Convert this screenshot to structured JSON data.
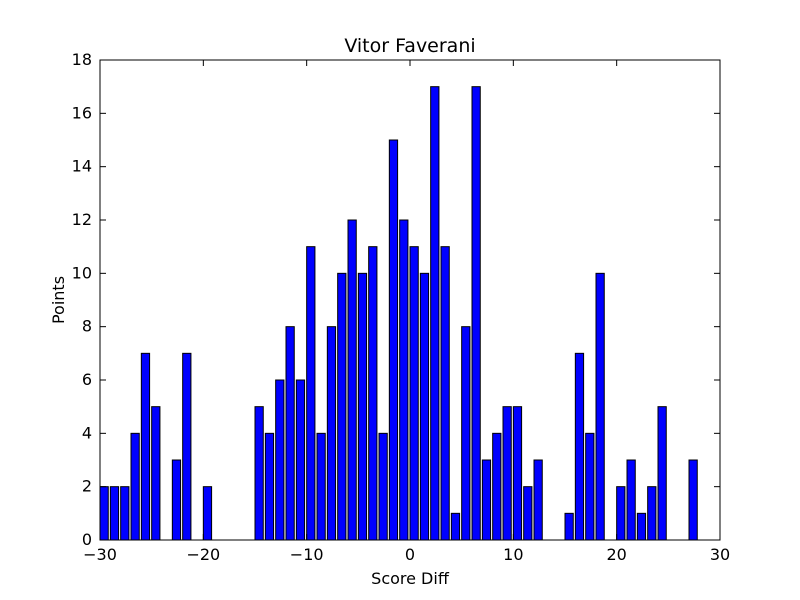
{
  "chart_data": {
    "type": "bar",
    "title": "Vitor Faverani",
    "xlabel": "Score Diff",
    "ylabel": "Points",
    "xlim": [
      -30,
      30
    ],
    "ylim": [
      0,
      18
    ],
    "xticks": [
      -30,
      -20,
      -10,
      0,
      10,
      20,
      30
    ],
    "yticks": [
      0,
      2,
      4,
      6,
      8,
      10,
      12,
      14,
      16,
      18
    ],
    "bar_color": "#0000ff",
    "grid": false,
    "x": [
      -30,
      -29,
      -28,
      -27,
      -26,
      -25,
      -23,
      -22,
      -20,
      -15,
      -14,
      -13,
      -12,
      -11,
      -10,
      -9,
      -8,
      -7,
      -6,
      -5,
      -4,
      -3,
      -2,
      -1,
      0,
      1,
      2,
      3,
      4,
      5,
      6,
      7,
      8,
      9,
      10,
      11,
      12,
      15,
      16,
      17,
      18,
      20,
      21,
      22,
      23,
      24,
      27
    ],
    "values": [
      2,
      2,
      2,
      4,
      7,
      5,
      3,
      7,
      2,
      5,
      4,
      6,
      8,
      6,
      11,
      4,
      8,
      10,
      12,
      10,
      11,
      4,
      15,
      12,
      11,
      10,
      17,
      11,
      1,
      8,
      17,
      3,
      4,
      5,
      5,
      2,
      3,
      1,
      7,
      4,
      10,
      2,
      3,
      1,
      2,
      5,
      3
    ]
  }
}
